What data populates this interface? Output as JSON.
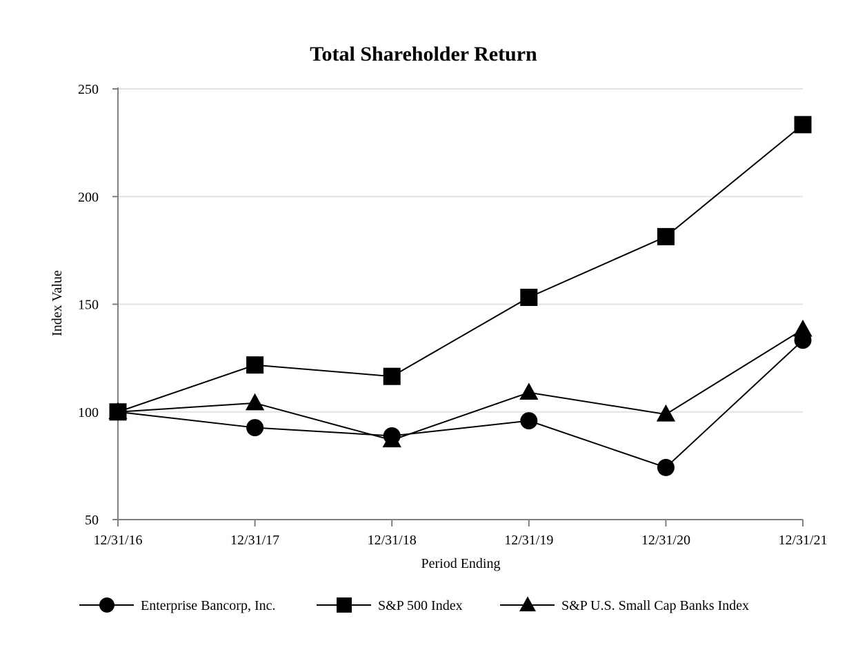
{
  "chart_data": {
    "type": "line",
    "title": "Total Shareholder Return",
    "xlabel": "Period Ending",
    "ylabel": "Index Value",
    "categories": [
      "12/31/16",
      "12/31/17",
      "12/31/18",
      "12/31/19",
      "12/31/20",
      "12/31/21"
    ],
    "ylim": [
      50,
      250
    ],
    "yticks": [
      50,
      100,
      150,
      200,
      250
    ],
    "grid": true,
    "legend_position": "bottom",
    "series": [
      {
        "name": "Enterprise Bancorp, Inc.",
        "marker": "circle",
        "values": [
          100,
          92.7,
          88.9,
          95.9,
          74.2,
          133.3
        ]
      },
      {
        "name": "S&P 500 Index",
        "marker": "square",
        "values": [
          100,
          121.8,
          116.5,
          153.2,
          181.4,
          233.4
        ]
      },
      {
        "name": "S&P U.S. Small Cap Banks Index",
        "marker": "triangle",
        "values": [
          100,
          104.1,
          86.9,
          109.0,
          98.9,
          138.3
        ]
      }
    ],
    "colors": {
      "line": "#000000",
      "grid": "#e3e3e3",
      "axis": "#7f7f7f"
    }
  }
}
